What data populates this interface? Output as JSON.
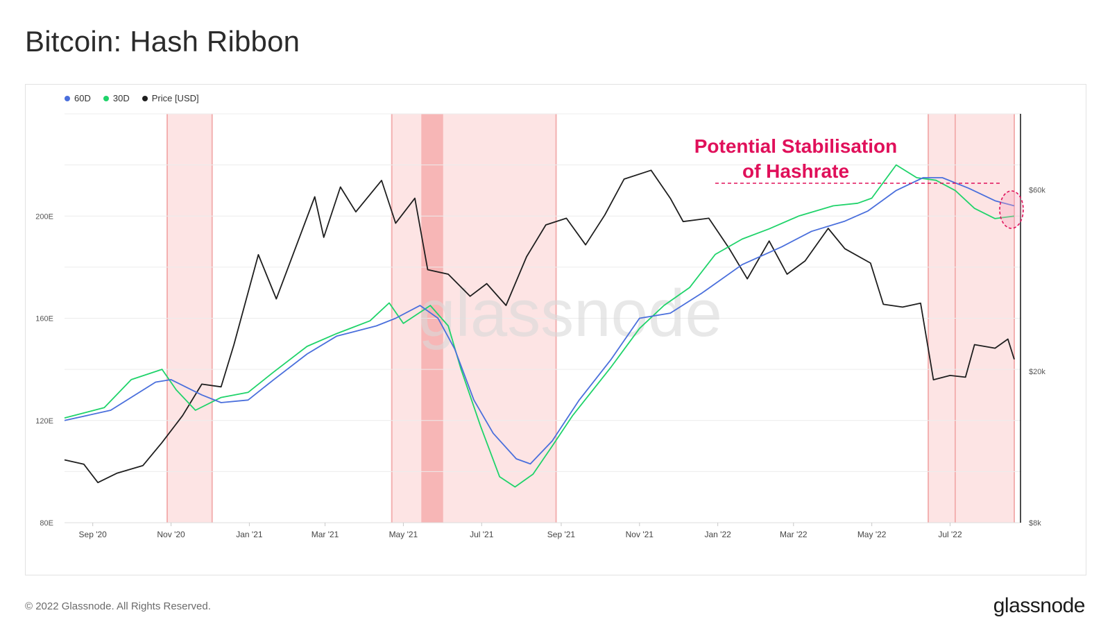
{
  "title": "Bitcoin: Hash Ribbon",
  "footer": {
    "copyright": "© 2022 Glassnode. All Rights Reserved.",
    "logo": "glassnode"
  },
  "watermark": "glassnode",
  "colors": {
    "d60": "#4a6fdc",
    "d30": "#1fd36a",
    "price": "#1e1e1e",
    "capitulation": "#fde4e4",
    "capitulation_dark": "#f7b6b6",
    "annotation": "#e0105a"
  },
  "chart_data": {
    "type": "line",
    "title": "Bitcoin: Hash Ribbon",
    "annotation": {
      "line1": "Potential Stabilisation",
      "line2": "of Hashrate"
    },
    "x_ticks": [
      "Sep '20",
      "Nov '20",
      "Jan '21",
      "Mar '21",
      "May '21",
      "Jul '21",
      "Sep '21",
      "Nov '21",
      "Jan '22",
      "Mar '22",
      "May '22",
      "Jul '22"
    ],
    "y_left": {
      "ticks": [
        "80E",
        "120E",
        "160E",
        "200E"
      ],
      "range": [
        80,
        240
      ],
      "unit": "EH/s"
    },
    "y_right": {
      "ticks": [
        "$8k",
        "$20k",
        "$60k"
      ],
      "scale": "log",
      "range": [
        8000,
        95000
      ]
    },
    "capitulation_bands": [
      {
        "start": "2020-10-29",
        "end": "2020-12-03"
      },
      {
        "start": "2021-04-22",
        "end": "2021-08-28"
      },
      {
        "start": "2022-06-14",
        "end": "2022-08-20"
      }
    ],
    "capitulation_dark_bands": [
      {
        "start": "2021-05-15",
        "end": "2021-06-01"
      }
    ],
    "series": [
      {
        "name": "60D",
        "points": [
          [
            "2020-08-10",
            120
          ],
          [
            "2020-09-15",
            124
          ],
          [
            "2020-10-20",
            135
          ],
          [
            "2020-11-01",
            136
          ],
          [
            "2020-11-25",
            130
          ],
          [
            "2020-12-10",
            127
          ],
          [
            "2020-12-31",
            128
          ],
          [
            "2021-01-20",
            136
          ],
          [
            "2021-02-15",
            146
          ],
          [
            "2021-03-10",
            153
          ],
          [
            "2021-04-10",
            157
          ],
          [
            "2021-04-25",
            160
          ],
          [
            "2021-05-14",
            165
          ],
          [
            "2021-05-28",
            160
          ],
          [
            "2021-06-10",
            148
          ],
          [
            "2021-06-25",
            128
          ],
          [
            "2021-07-10",
            115
          ],
          [
            "2021-07-28",
            105
          ],
          [
            "2021-08-08",
            103
          ],
          [
            "2021-08-25",
            112
          ],
          [
            "2021-09-15",
            128
          ],
          [
            "2021-10-10",
            144
          ],
          [
            "2021-11-01",
            160
          ],
          [
            "2021-11-25",
            162
          ],
          [
            "2021-12-20",
            170
          ],
          [
            "2022-01-20",
            181
          ],
          [
            "2022-02-20",
            188
          ],
          [
            "2022-03-15",
            194
          ],
          [
            "2022-04-10",
            198
          ],
          [
            "2022-04-28",
            202
          ],
          [
            "2022-05-20",
            210
          ],
          [
            "2022-06-10",
            215
          ],
          [
            "2022-06-25",
            215
          ],
          [
            "2022-07-15",
            211
          ],
          [
            "2022-08-05",
            206
          ],
          [
            "2022-08-20",
            204
          ]
        ]
      },
      {
        "name": "30D",
        "points": [
          [
            "2020-08-10",
            121
          ],
          [
            "2020-09-10",
            125
          ],
          [
            "2020-10-01",
            136
          ],
          [
            "2020-10-25",
            140
          ],
          [
            "2020-11-05",
            132
          ],
          [
            "2020-11-20",
            124
          ],
          [
            "2020-12-10",
            129
          ],
          [
            "2020-12-31",
            131
          ],
          [
            "2021-01-20",
            139
          ],
          [
            "2021-02-15",
            149
          ],
          [
            "2021-03-10",
            154
          ],
          [
            "2021-04-05",
            159
          ],
          [
            "2021-04-20",
            166
          ],
          [
            "2021-05-01",
            158
          ],
          [
            "2021-05-22",
            165
          ],
          [
            "2021-06-05",
            157
          ],
          [
            "2021-06-15",
            140
          ],
          [
            "2021-06-30",
            118
          ],
          [
            "2021-07-15",
            98
          ],
          [
            "2021-07-27",
            94
          ],
          [
            "2021-08-10",
            99
          ],
          [
            "2021-08-25",
            110
          ],
          [
            "2021-09-10",
            122
          ],
          [
            "2021-10-10",
            141
          ],
          [
            "2021-11-01",
            156
          ],
          [
            "2021-11-20",
            165
          ],
          [
            "2021-12-10",
            172
          ],
          [
            "2021-12-30",
            185
          ],
          [
            "2022-01-20",
            191
          ],
          [
            "2022-02-10",
            195
          ],
          [
            "2022-03-05",
            200
          ],
          [
            "2022-04-01",
            204
          ],
          [
            "2022-04-20",
            205
          ],
          [
            "2022-05-01",
            207
          ],
          [
            "2022-05-20",
            220
          ],
          [
            "2022-06-05",
            215
          ],
          [
            "2022-06-20",
            214
          ],
          [
            "2022-07-05",
            210
          ],
          [
            "2022-07-20",
            203
          ],
          [
            "2022-08-05",
            199
          ],
          [
            "2022-08-20",
            200
          ]
        ]
      },
      {
        "name": "Price [USD]",
        "axis": "right",
        "points": [
          [
            "2020-08-10",
            11700
          ],
          [
            "2020-08-25",
            11400
          ],
          [
            "2020-09-05",
            10200
          ],
          [
            "2020-09-20",
            10800
          ],
          [
            "2020-10-10",
            11300
          ],
          [
            "2020-10-25",
            13000
          ],
          [
            "2020-11-10",
            15300
          ],
          [
            "2020-11-25",
            18500
          ],
          [
            "2020-12-10",
            18200
          ],
          [
            "2020-12-20",
            23500
          ],
          [
            "2021-01-08",
            40500
          ],
          [
            "2021-01-22",
            31000
          ],
          [
            "2021-02-08",
            44000
          ],
          [
            "2021-02-21",
            57500
          ],
          [
            "2021-02-28",
            45000
          ],
          [
            "2021-03-13",
            61000
          ],
          [
            "2021-03-25",
            52500
          ],
          [
            "2021-04-14",
            63500
          ],
          [
            "2021-04-25",
            49000
          ],
          [
            "2021-05-10",
            57000
          ],
          [
            "2021-05-20",
            37000
          ],
          [
            "2021-06-05",
            36000
          ],
          [
            "2021-06-22",
            31500
          ],
          [
            "2021-07-05",
            34000
          ],
          [
            "2021-07-20",
            29800
          ],
          [
            "2021-08-05",
            40000
          ],
          [
            "2021-08-20",
            48500
          ],
          [
            "2021-09-05",
            50500
          ],
          [
            "2021-09-20",
            43000
          ],
          [
            "2021-10-05",
            51500
          ],
          [
            "2021-10-20",
            64000
          ],
          [
            "2021-11-10",
            67500
          ],
          [
            "2021-11-25",
            57000
          ],
          [
            "2021-12-05",
            49500
          ],
          [
            "2021-12-25",
            50500
          ],
          [
            "2022-01-10",
            42000
          ],
          [
            "2022-01-24",
            35000
          ],
          [
            "2022-02-10",
            44000
          ],
          [
            "2022-02-24",
            36000
          ],
          [
            "2022-03-10",
            39000
          ],
          [
            "2022-03-28",
            47500
          ],
          [
            "2022-04-10",
            42000
          ],
          [
            "2022-04-30",
            38500
          ],
          [
            "2022-05-10",
            30000
          ],
          [
            "2022-05-25",
            29500
          ],
          [
            "2022-06-08",
            30200
          ],
          [
            "2022-06-18",
            19000
          ],
          [
            "2022-07-01",
            19500
          ],
          [
            "2022-07-13",
            19300
          ],
          [
            "2022-07-20",
            23500
          ],
          [
            "2022-08-05",
            23000
          ],
          [
            "2022-08-15",
            24300
          ],
          [
            "2022-08-20",
            21500
          ]
        ]
      }
    ]
  }
}
